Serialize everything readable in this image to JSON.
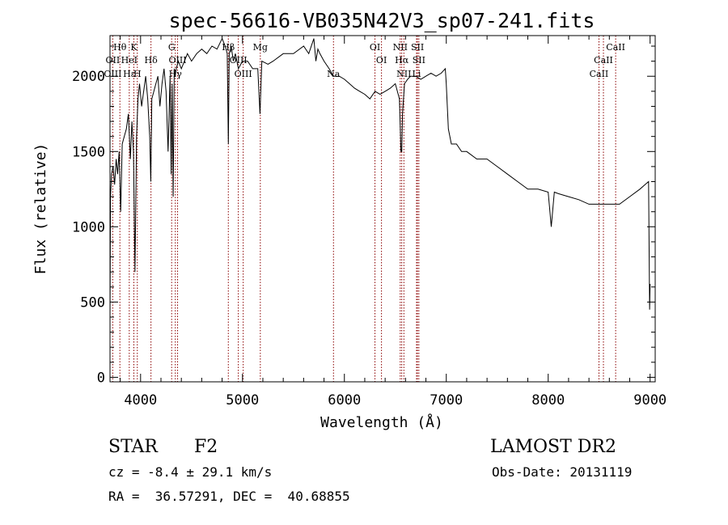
{
  "chart_data": {
    "type": "line",
    "title": "spec-56616-VB035N42V3_sp07-241.fits",
    "xlabel": "Wavelength (Å)",
    "ylabel": "Flux (relative)",
    "xlim": [
      3700,
      9050
    ],
    "ylim": [
      -30,
      2270
    ],
    "xticks": [
      4000,
      5000,
      6000,
      7000,
      8000,
      9000
    ],
    "yticks": [
      0,
      500,
      1000,
      1500,
      2000
    ],
    "grid": false,
    "series": [
      {
        "x": [
          3700,
          3705,
          3715,
          3730,
          3745,
          3760,
          3775,
          3790,
          3805,
          3820,
          3840,
          3860,
          3880,
          3900,
          3915,
          3930,
          3945,
          3960,
          3975,
          3990,
          4010,
          4030,
          4050,
          4070,
          4090,
          4100,
          4110,
          4130,
          4150,
          4170,
          4190,
          4210,
          4230,
          4250,
          4270,
          4290,
          4300,
          4310,
          4320,
          4330,
          4340,
          4350,
          4370,
          4400,
          4430,
          4460,
          4500,
          4550,
          4600,
          4650,
          4700,
          4750,
          4800,
          4830,
          4850,
          4861,
          4870,
          4890,
          4910,
          4930,
          4960,
          5000,
          5050,
          5100,
          5150,
          5172,
          5190,
          5250,
          5300,
          5400,
          5500,
          5600,
          5650,
          5700,
          5720,
          5740,
          5760,
          5800,
          5850,
          5893,
          5950,
          6000,
          6050,
          6100,
          6150,
          6200,
          6250,
          6300,
          6350,
          6400,
          6450,
          6500,
          6540,
          6555,
          6563,
          6570,
          6590,
          6620,
          6650,
          6700,
          6750,
          6800,
          6850,
          6900,
          6950,
          6990,
          7000,
          7020,
          7050,
          7100,
          7150,
          7200,
          7300,
          7400,
          7500,
          7600,
          7700,
          7800,
          7900,
          8000,
          8030,
          8060,
          8100,
          8200,
          8300,
          8400,
          8498,
          8542,
          8600,
          8662,
          8700,
          8800,
          8900,
          8950,
          8985,
          8995,
          9000
        ],
        "values": [
          380,
          1200,
          1350,
          1400,
          1280,
          1450,
          1350,
          1500,
          1100,
          1550,
          1600,
          1650,
          1750,
          1450,
          1700,
          1500,
          700,
          1600,
          1850,
          1950,
          1800,
          1900,
          2000,
          1850,
          1600,
          1300,
          1850,
          1900,
          1950,
          2000,
          1800,
          1950,
          2050,
          1900,
          1500,
          2000,
          1350,
          1950,
          1200,
          2050,
          2000,
          2050,
          2100,
          2050,
          2100,
          2150,
          2100,
          2150,
          2180,
          2150,
          2200,
          2180,
          2250,
          2200,
          2150,
          1550,
          2150,
          2200,
          2100,
          2150,
          2050,
          2100,
          2100,
          2050,
          2050,
          1750,
          2100,
          2080,
          2100,
          2150,
          2150,
          2200,
          2150,
          2250,
          2100,
          2180,
          2150,
          2100,
          2050,
          2000,
          2000,
          1980,
          1950,
          1920,
          1900,
          1880,
          1850,
          1900,
          1880,
          1900,
          1920,
          1950,
          1850,
          1500,
          1500,
          1750,
          1950,
          1980,
          2000,
          2000,
          1980,
          2000,
          2020,
          2000,
          2020,
          2050,
          1950,
          1650,
          1550,
          1550,
          1500,
          1500,
          1450,
          1450,
          1400,
          1350,
          1300,
          1250,
          1250,
          1230,
          1000,
          1230,
          1220,
          1200,
          1180,
          1150,
          1150,
          1150,
          1150,
          1150,
          1150,
          1200,
          1250,
          1280,
          1300,
          450,
          620
        ]
      }
    ],
    "annotations": [
      {
        "label": "Hθ",
        "x": 3797,
        "row": 1
      },
      {
        "label": "OII",
        "x": 3727,
        "row": 2
      },
      {
        "label": "OIII",
        "x": 3727,
        "row": 3
      },
      {
        "label": "HeI",
        "x": 3889,
        "row": 2
      },
      {
        "label": "Hε",
        "x": 3889,
        "row": 3
      },
      {
        "label": "K",
        "x": 3934,
        "row": 1
      },
      {
        "label": "H",
        "x": 3968,
        "row": 3
      },
      {
        "label": "Hδ",
        "x": 4102,
        "row": 2
      },
      {
        "label": "G",
        "x": 4305,
        "row": 1
      },
      {
        "label": "OIII",
        "x": 4363,
        "row": 2
      },
      {
        "label": "Hγ",
        "x": 4341,
        "row": 3
      },
      {
        "label": "Hβ",
        "x": 4861,
        "row": 1
      },
      {
        "label": "OIII",
        "x": 4959,
        "row": 2
      },
      {
        "label": "OIII",
        "x": 5007,
        "row": 3
      },
      {
        "label": "Mg",
        "x": 5175,
        "row": 1
      },
      {
        "label": "Na",
        "x": 5893,
        "row": 3
      },
      {
        "label": "OI",
        "x": 6300,
        "row": 1
      },
      {
        "label": "OI",
        "x": 6364,
        "row": 2
      },
      {
        "label": "NII",
        "x": 6548,
        "row": 1
      },
      {
        "label": "Hα",
        "x": 6563,
        "row": 2
      },
      {
        "label": "NII",
        "x": 6584,
        "row": 3
      },
      {
        "label": "SII",
        "x": 6717,
        "row": 1
      },
      {
        "label": "SII",
        "x": 6731,
        "row": 2
      },
      {
        "label": "Li",
        "x": 6708,
        "row": 3
      },
      {
        "label": "CaII",
        "x": 8662,
        "row": 1
      },
      {
        "label": "CaII",
        "x": 8542,
        "row": 2
      },
      {
        "label": "CaII",
        "x": 8498,
        "row": 3
      }
    ],
    "line_color": "#000000",
    "marker_color": "#8b0000"
  },
  "info": {
    "object_type": "STAR",
    "subclass": "F2",
    "survey": "LAMOST DR2",
    "redshift": "cz = -8.4 ± 29.1 km/s",
    "obs_date": "Obs-Date: 20131119",
    "coords": "RA =  36.57291, DEC =  40.68855"
  }
}
